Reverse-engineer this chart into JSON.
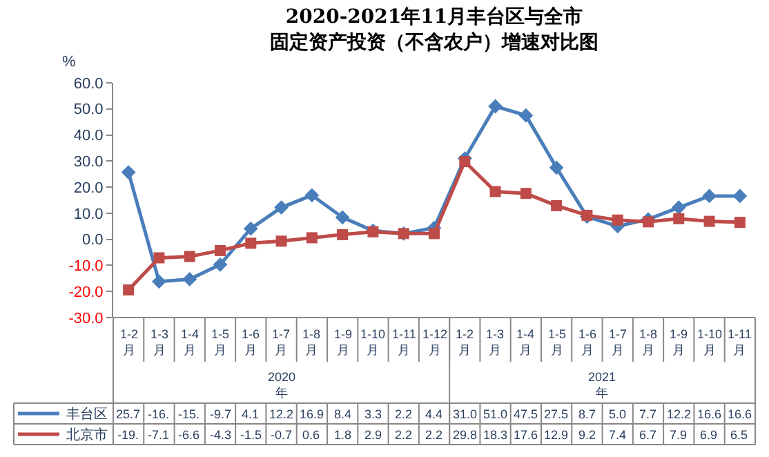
{
  "chart_data": {
    "type": "line",
    "title": "2020-2021年11月丰台区与全市",
    "subtitle": "固定资产投资（不含农户）增速对比图",
    "ylabel": "%",
    "categories": [
      "1-2月",
      "1-3月",
      "1-4月",
      "1-5月",
      "1-6月",
      "1-7月",
      "1-8月",
      "1-9月",
      "1-10月",
      "1-11月",
      "1-12月",
      "1-2月",
      "1-3月",
      "1-4月",
      "1-5月",
      "1-6月",
      "1-7月",
      "1-8月",
      "1-9月",
      "1-10月",
      "1-11月"
    ],
    "annotations": [
      "2020年",
      "2021年"
    ],
    "series": [
      {
        "name": "丰台区",
        "color": "#4a7ebb",
        "marker": "diamond",
        "values": [
          25.7,
          -16.2,
          -15.3,
          -9.7,
          4.1,
          12.2,
          16.9,
          8.4,
          3.3,
          2.2,
          4.4,
          31.0,
          51.0,
          47.5,
          27.5,
          8.7,
          5.0,
          7.7,
          12.2,
          16.6,
          16.6
        ],
        "value_labels": [
          "25.7",
          "-16.",
          "-15.",
          "-9.7",
          "4.1",
          "12.2",
          "16.9",
          "8.4",
          "3.3",
          "2.2",
          "4.4",
          "31.0",
          "51.0",
          "47.5",
          "27.5",
          "8.7",
          "5.0",
          "7.7",
          "12.2",
          "16.6",
          "16.6"
        ]
      },
      {
        "name": "北京市",
        "color": "#be4b48",
        "marker": "square",
        "values": [
          -19.4,
          -7.1,
          -6.6,
          -4.3,
          -1.5,
          -0.7,
          0.6,
          1.8,
          2.9,
          2.2,
          2.2,
          29.8,
          18.3,
          17.6,
          12.9,
          9.2,
          7.4,
          6.7,
          7.9,
          6.9,
          6.5
        ],
        "value_labels": [
          "-19.",
          "-7.1",
          "-6.6",
          "-4.3",
          "-1.5",
          "-0.7",
          "0.6",
          "1.8",
          "2.9",
          "2.2",
          "2.2",
          "29.8",
          "18.3",
          "17.6",
          "12.9",
          "9.2",
          "7.4",
          "6.7",
          "7.9",
          "6.9",
          "6.5"
        ]
      }
    ],
    "ylim": [
      -30,
      60
    ],
    "yticks": [
      {
        "value": -30,
        "label": "-30.0"
      },
      {
        "value": -20,
        "label": "-20.0"
      },
      {
        "value": -10,
        "label": "-10.0"
      },
      {
        "value": 0,
        "label": "0.0"
      },
      {
        "value": 10,
        "label": "10.0"
      },
      {
        "value": 20,
        "label": "20.0"
      },
      {
        "value": 30,
        "label": "30.0"
      },
      {
        "value": 40,
        "label": "40.0"
      },
      {
        "value": 50,
        "label": "50.0"
      },
      {
        "value": 60,
        "label": "60.0"
      }
    ],
    "legend": "bottom"
  }
}
